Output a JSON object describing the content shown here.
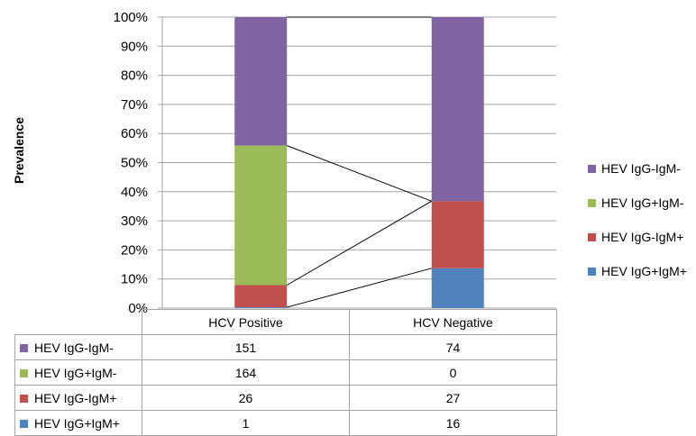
{
  "chart_data": {
    "type": "bar",
    "stacked": "percent",
    "ylabel": "Prevalence",
    "categories": [
      "HCV Positive",
      "HCV Negative"
    ],
    "yticks": [
      "0%",
      "10%",
      "20%",
      "30%",
      "40%",
      "50%",
      "60%",
      "70%",
      "80%",
      "90%",
      "100%"
    ],
    "ylim": [
      0,
      1
    ],
    "grid": true,
    "legend_position": "right",
    "series": [
      {
        "name": "HEV IgG+IgM+",
        "color": "#4f81bd",
        "values": [
          1,
          16
        ]
      },
      {
        "name": "HEV IgG-IgM+",
        "color": "#c0504d",
        "values": [
          26,
          27
        ]
      },
      {
        "name": "HEV IgG+IgM-",
        "color": "#9bbb59",
        "values": [
          164,
          0
        ]
      },
      {
        "name": "HEV IgG-IgM-",
        "color": "#8064a2",
        "values": [
          151,
          74
        ]
      }
    ],
    "legend": [
      {
        "name": "HEV IgG-IgM-",
        "color": "#8064a2"
      },
      {
        "name": "HEV IgG+IgM-",
        "color": "#9bbb59"
      },
      {
        "name": "HEV IgG-IgM+",
        "color": "#c0504d"
      },
      {
        "name": "HEV IgG+IgM+",
        "color": "#4f81bd"
      }
    ],
    "table": {
      "columns": [
        "HCV Positive",
        "HCV Negative"
      ],
      "rows": [
        {
          "name": "HEV IgG-IgM-",
          "color": "#8064a2",
          "values": [
            "151",
            "74"
          ]
        },
        {
          "name": "HEV IgG+IgM-",
          "color": "#9bbb59",
          "values": [
            "164",
            "0"
          ]
        },
        {
          "name": "HEV IgG-IgM+",
          "color": "#c0504d",
          "values": [
            "26",
            "27"
          ]
        },
        {
          "name": "HEV IgG+IgM+",
          "color": "#4f81bd",
          "values": [
            "1",
            "16"
          ]
        }
      ]
    }
  }
}
